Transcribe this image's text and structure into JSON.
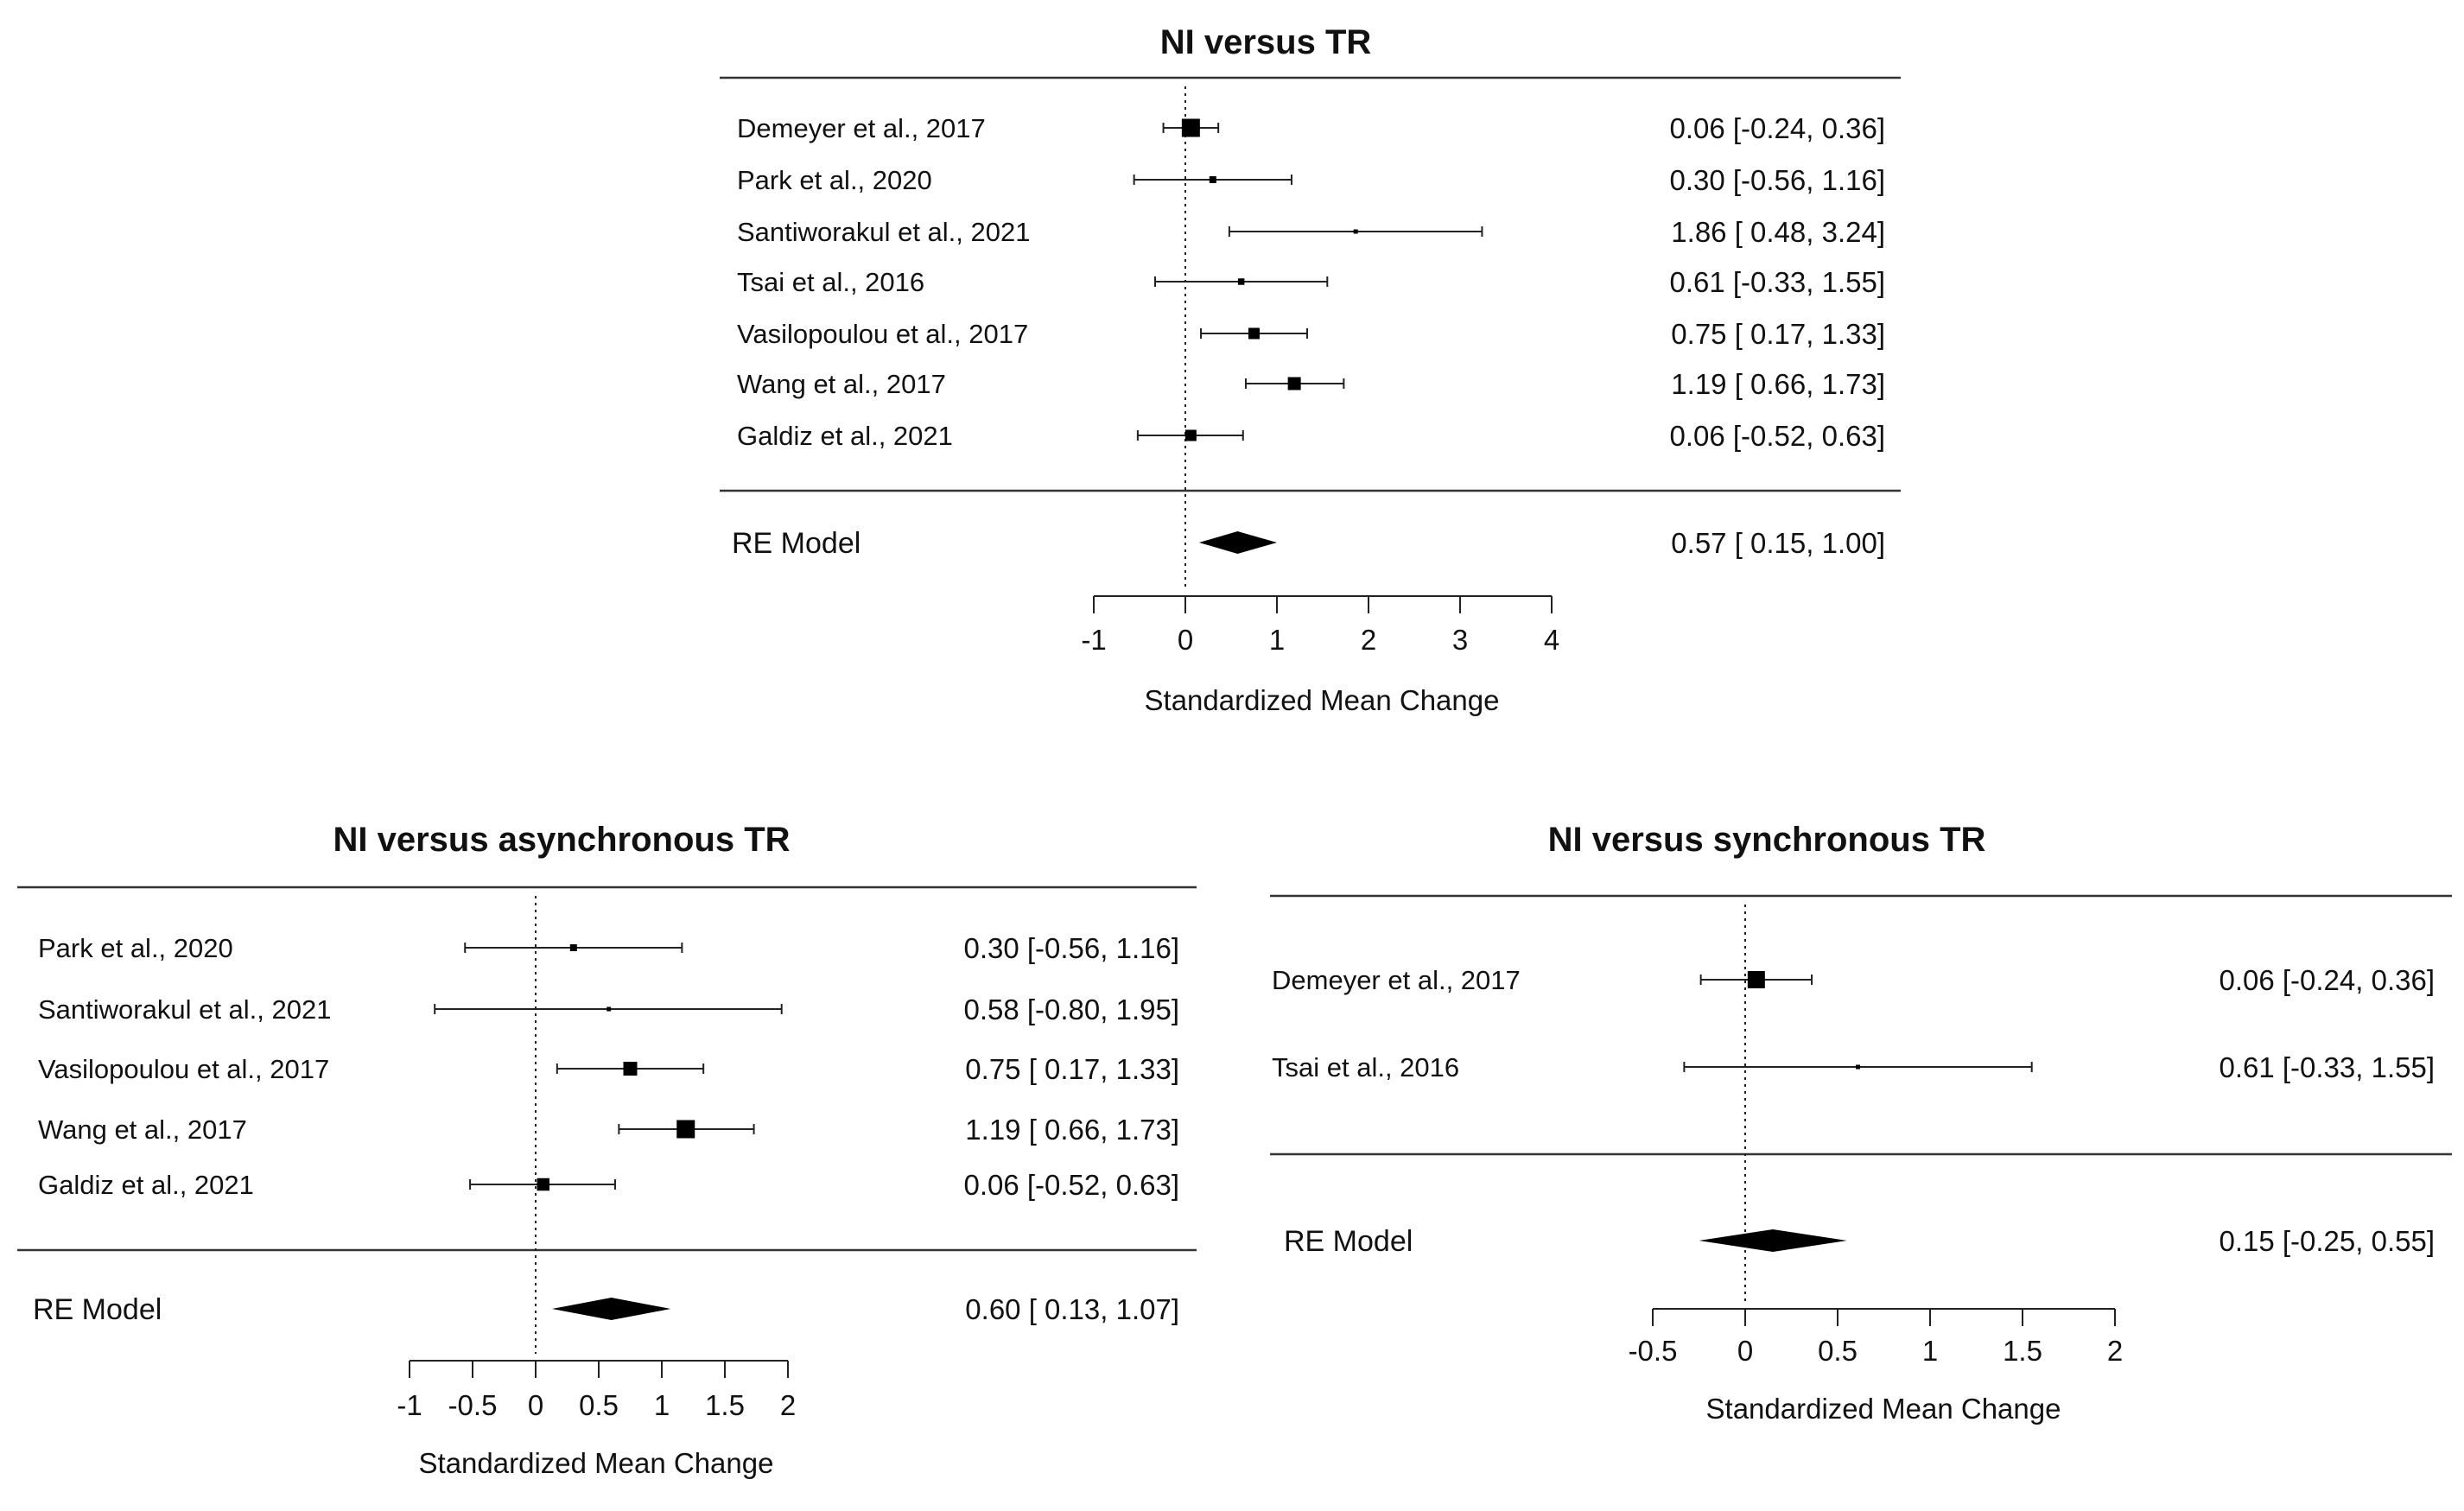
{
  "chart_data": [
    {
      "type": "forest",
      "title": "NI versus TR",
      "xlabel": "Standardized Mean Change",
      "xticks": [
        -1,
        0,
        1,
        2,
        3,
        4
      ],
      "xtick_labels": [
        "-1",
        "0",
        "1",
        "2",
        "3",
        "4"
      ],
      "xlim": [
        -1,
        4
      ],
      "reference_line": 0,
      "studies": [
        {
          "label": "Demeyer et al., 2017",
          "estimate": 0.06,
          "lower": -0.24,
          "upper": 0.36,
          "weight": 4.2,
          "ci_text": "0.06 [-0.24, 0.36]"
        },
        {
          "label": "Park et al., 2020",
          "estimate": 0.3,
          "lower": -0.56,
          "upper": 1.16,
          "weight": 1.6,
          "ci_text": "0.30 [-0.56, 1.16]"
        },
        {
          "label": "Santiworakul et al., 2021",
          "estimate": 1.86,
          "lower": 0.48,
          "upper": 3.24,
          "weight": 0.7,
          "ci_text": "1.86 [ 0.48, 3.24]"
        },
        {
          "label": "Tsai et al., 2016",
          "estimate": 0.61,
          "lower": -0.33,
          "upper": 1.55,
          "weight": 1.5,
          "ci_text": "0.61 [-0.33, 1.55]"
        },
        {
          "label": "Vasilopoulou et al., 2017",
          "estimate": 0.75,
          "lower": 0.17,
          "upper": 1.33,
          "weight": 2.6,
          "ci_text": "0.75 [ 0.17, 1.33]"
        },
        {
          "label": "Wang et al., 2017",
          "estimate": 1.19,
          "lower": 0.66,
          "upper": 1.73,
          "weight": 3.0,
          "ci_text": "1.19 [ 0.66, 1.73]"
        },
        {
          "label": "Galdiz et al., 2021",
          "estimate": 0.06,
          "lower": -0.52,
          "upper": 0.63,
          "weight": 2.6,
          "ci_text": "0.06 [-0.52, 0.63]"
        }
      ],
      "summary": {
        "label": "RE Model",
        "estimate": 0.57,
        "lower": 0.15,
        "upper": 1.0,
        "ci_text": "0.57 [ 0.15, 1.00]"
      }
    },
    {
      "type": "forest",
      "title": "NI versus asynchronous TR",
      "xlabel": "Standardized Mean Change",
      "xticks": [
        -1,
        -0.5,
        0,
        0.5,
        1,
        1.5,
        2
      ],
      "xtick_labels": [
        "-1",
        "-0.5",
        "0",
        "0.5",
        "1",
        "1.5",
        "2"
      ],
      "xlim": [
        -1,
        2
      ],
      "reference_line": 0,
      "studies": [
        {
          "label": "Park et al., 2020",
          "estimate": 0.3,
          "lower": -0.56,
          "upper": 1.16,
          "weight": 1.6,
          "ci_text": "0.30 [-0.56, 1.16]"
        },
        {
          "label": "Santiworakul et al., 2021",
          "estimate": 0.58,
          "lower": -0.8,
          "upper": 1.95,
          "weight": 0.6,
          "ci_text": "0.58 [-0.80, 1.95]"
        },
        {
          "label": "Vasilopoulou et al., 2017",
          "estimate": 0.75,
          "lower": 0.17,
          "upper": 1.33,
          "weight": 3.2,
          "ci_text": "0.75 [ 0.17, 1.33]"
        },
        {
          "label": "Wang et al., 2017",
          "estimate": 1.19,
          "lower": 0.66,
          "upper": 1.73,
          "weight": 4.2,
          "ci_text": "1.19 [ 0.66, 1.73]"
        },
        {
          "label": "Galdiz et al., 2021",
          "estimate": 0.06,
          "lower": -0.52,
          "upper": 0.63,
          "weight": 2.9,
          "ci_text": "0.06 [-0.52, 0.63]"
        }
      ],
      "summary": {
        "label": "RE Model",
        "estimate": 0.6,
        "lower": 0.13,
        "upper": 1.07,
        "ci_text": "0.60 [ 0.13, 1.07]"
      }
    },
    {
      "type": "forest",
      "title": "NI versus synchronous TR",
      "xlabel": "Standardized Mean Change",
      "xticks": [
        -0.5,
        0,
        0.5,
        1,
        1.5,
        2
      ],
      "xtick_labels": [
        "-0.5",
        "0",
        "0.5",
        "1",
        "1.5",
        "2"
      ],
      "xlim": [
        -0.5,
        2
      ],
      "reference_line": 0,
      "studies": [
        {
          "label": "Demeyer et al., 2017",
          "estimate": 0.06,
          "lower": -0.24,
          "upper": 0.36,
          "weight": 4.0,
          "ci_text": "0.06 [-0.24, 0.36]"
        },
        {
          "label": "Tsai et al., 2016",
          "estimate": 0.61,
          "lower": -0.33,
          "upper": 1.55,
          "weight": 0.6,
          "ci_text": "0.61 [-0.33, 1.55]"
        }
      ],
      "summary": {
        "label": "RE Model",
        "estimate": 0.15,
        "lower": -0.25,
        "upper": 0.55,
        "ci_text": "0.15 [-0.25, 0.55]"
      }
    }
  ]
}
